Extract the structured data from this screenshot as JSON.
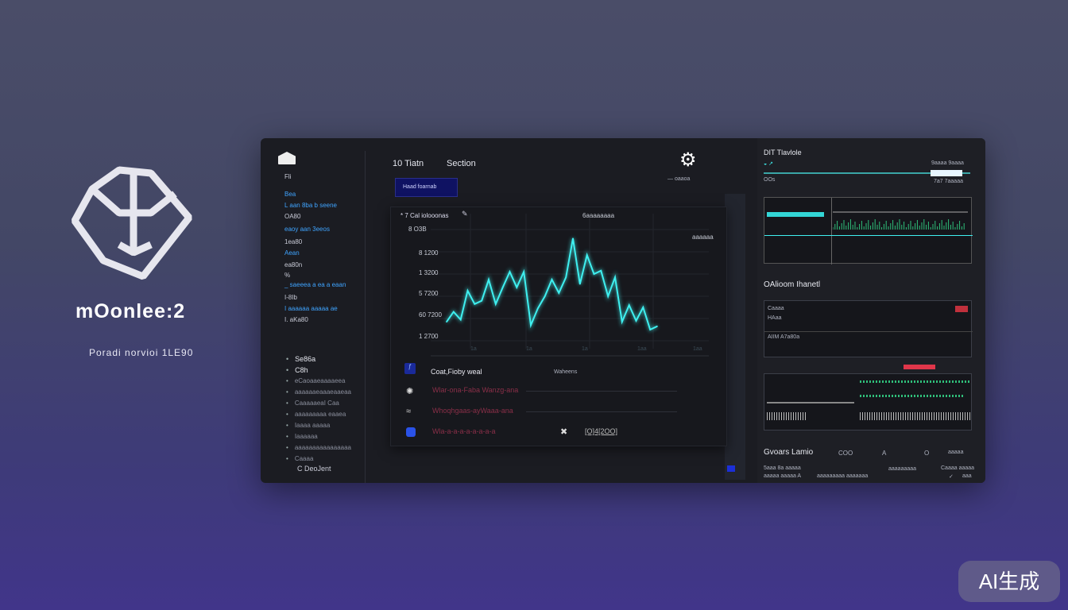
{
  "brand": {
    "name": "mOonlee:2",
    "tagline": "Poradi norvioi 1LE90"
  },
  "sidebar": {
    "top_items": [
      {
        "label": "Fli",
        "blue": false
      },
      {
        "label": "Bea",
        "blue": true
      },
      {
        "label": "L aan 8ba b seene",
        "blue": true
      },
      {
        "label": "OA80",
        "blue": false
      },
      {
        "label": "eaoy aan 3eeos",
        "blue": true
      },
      {
        "label": "1ea80",
        "blue": false
      },
      {
        "label": "Aean",
        "blue": true
      },
      {
        "label": "ea80n",
        "blue": false
      },
      {
        "label": "%",
        "blue": false
      },
      {
        "label": "_ saeeea a ea a eaan",
        "blue": true
      },
      {
        "label": "I-8Ib",
        "blue": false
      },
      {
        "label": "I aaaaaa aaaaa ae",
        "blue": true
      },
      {
        "label": "I. aKa80",
        "blue": false
      }
    ],
    "bottom_items": [
      "Se86a",
      "C8h",
      "eCaoaaeaaaaeea",
      "aaaaaaeaaaeaaeaa",
      "CaaaaaeaI Caa",
      "aaaaaaaaa eaaea",
      "Iaaaa aaaaa",
      "Iaaaaaa",
      "aaaaaaaaaaaaaaaa",
      "Caaaa"
    ],
    "footer": "C DeoJent"
  },
  "header": {
    "tab1": "10 Tiatn",
    "tab2": "Section",
    "gear_caption": "— oaaoa",
    "button": "Haad foarnab"
  },
  "chart_card": {
    "legend": "* 7 Cal iolooonas",
    "center_label": "6aaaaaaaa",
    "corner_label": "aaaaaa"
  },
  "chart_data": {
    "type": "line",
    "title": "",
    "xlabel": "",
    "ylabel": "",
    "ytick_labels": [
      "8 O3B",
      "8 1200",
      "1 3200",
      "5 7200",
      "60 7200",
      "1 2700"
    ],
    "xtick_labels": [
      "1a",
      "1a",
      "1a",
      "1aa",
      "1aa"
    ],
    "values": [
      17,
      26,
      19,
      45,
      33,
      36,
      55,
      33,
      48,
      62,
      48,
      62,
      14,
      29,
      40,
      55,
      43,
      57,
      92,
      51,
      77,
      60,
      63,
      40,
      57,
      17,
      32,
      18,
      30,
      10,
      13
    ],
    "color": "#3ff0f0",
    "grid": true
  },
  "list": {
    "header_title": "Coat,Fioby weal",
    "header_meta": "Waheens",
    "rows": [
      "Wlar-ona-Faba Wanzg-ana",
      "Whoqhgaas-ayWaaa-ana",
      "Wla-a-a-a-a-a-a-a-a"
    ],
    "date": "[O]4[2OO]"
  },
  "right": {
    "panel1_title": "DIT Tlavlole",
    "panel1_sub": "OOs",
    "panel1_value": "9aaaa 9aaaa",
    "panel1_caption": "7a7 7aaaaa",
    "panel2_title": "OAlioom Ihanetl",
    "panel2_labels": [
      "Caaaa",
      "HAaa",
      "AIIM A7a80a"
    ],
    "panel3_title": "Gvoars Lamio",
    "panel3_cols": [
      "COO",
      "A",
      "O",
      "aaaaa"
    ],
    "panel3_row1": [
      "5aaa 8a aaaaa",
      "aaaaaaaaa",
      "Caaaa aaaaa"
    ],
    "panel3_row2": [
      "aaaaa aaaaa A",
      "aaaaaaaaa aaaaaaa",
      "✓",
      "aaa"
    ]
  },
  "badge": "AI生成",
  "colors": {
    "accent": "#3ff0f0",
    "green": "#2fbf7a",
    "red": "#e0364a",
    "blue": "#1b2fd8"
  }
}
